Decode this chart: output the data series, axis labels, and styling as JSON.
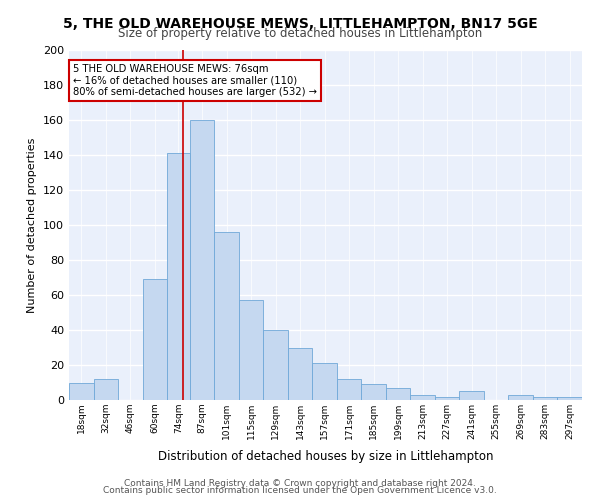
{
  "title": "5, THE OLD WAREHOUSE MEWS, LITTLEHAMPTON, BN17 5GE",
  "subtitle": "Size of property relative to detached houses in Littlehampton",
  "xlabel": "Distribution of detached houses by size in Littlehampton",
  "ylabel": "Number of detached properties",
  "bar_color": "#c5d8f0",
  "bar_edge_color": "#6fa8d8",
  "background_color": "#eaf0fb",
  "grid_color": "#ffffff",
  "annotation_text": "5 THE OLD WAREHOUSE MEWS: 76sqm\n← 16% of detached houses are smaller (110)\n80% of semi-detached houses are larger (532) →",
  "annotation_box_color": "#ffffff",
  "annotation_box_edge_color": "#cc0000",
  "vline_x": 76,
  "vline_color": "#cc0000",
  "categories": [
    "18sqm",
    "32sqm",
    "46sqm",
    "60sqm",
    "74sqm",
    "87sqm",
    "101sqm",
    "115sqm",
    "129sqm",
    "143sqm",
    "157sqm",
    "171sqm",
    "185sqm",
    "199sqm",
    "213sqm",
    "227sqm",
    "241sqm",
    "255sqm",
    "269sqm",
    "283sqm",
    "297sqm"
  ],
  "bin_edges": [
    11,
    25,
    39,
    53,
    67,
    80,
    94,
    108,
    122,
    136,
    150,
    164,
    178,
    192,
    206,
    220,
    234,
    248,
    262,
    276,
    290,
    304
  ],
  "values": [
    10,
    12,
    0,
    69,
    141,
    160,
    96,
    57,
    40,
    30,
    21,
    12,
    9,
    7,
    3,
    2,
    5,
    0,
    3,
    2,
    2
  ],
  "ylim": [
    0,
    200
  ],
  "yticks": [
    0,
    20,
    40,
    60,
    80,
    100,
    120,
    140,
    160,
    180,
    200
  ],
  "footer_line1": "Contains HM Land Registry data © Crown copyright and database right 2024.",
  "footer_line2": "Contains public sector information licensed under the Open Government Licence v3.0."
}
